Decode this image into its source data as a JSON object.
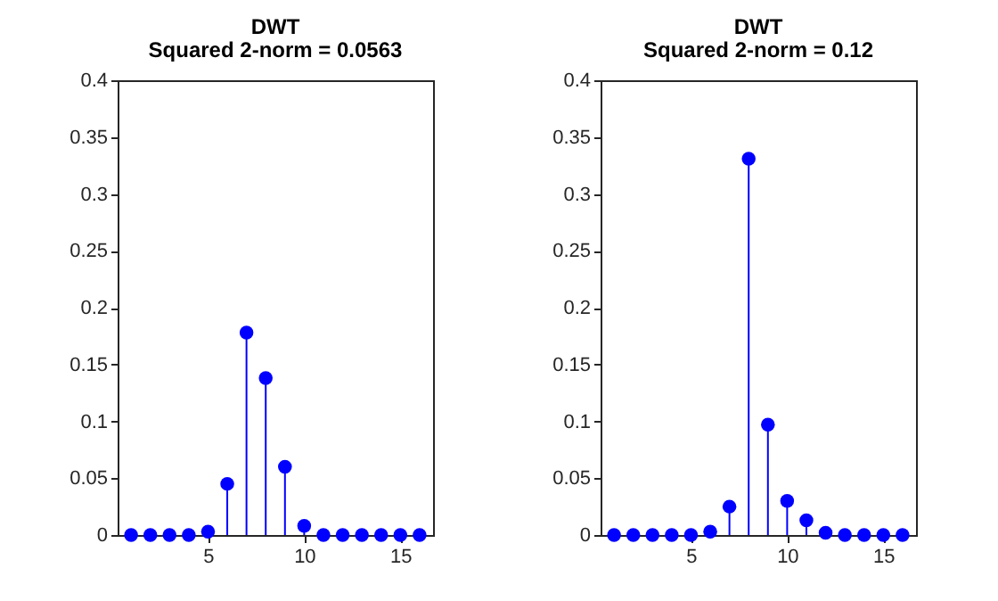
{
  "chart_data": [
    {
      "type": "lollipop",
      "title": "DWT",
      "subtitle": "Squared 2-norm = 0.0563",
      "x": [
        1,
        2,
        3,
        4,
        5,
        6,
        7,
        8,
        9,
        10,
        11,
        12,
        13,
        14,
        15,
        16
      ],
      "series": [
        {
          "color": "#0000ff",
          "values": [
            0,
            0,
            0,
            0,
            0.003,
            0.045,
            0.178,
            0.138,
            0.06,
            0.008,
            0,
            0,
            0,
            0,
            0,
            0
          ]
        }
      ],
      "xlim": [
        0.3,
        16.7
      ],
      "xticks": [
        5,
        10,
        15
      ],
      "ylim": [
        0,
        0.4
      ],
      "yticks": [
        0,
        0.05,
        0.1,
        0.15,
        0.2,
        0.25,
        0.3,
        0.35,
        0.4
      ],
      "marker": "circle",
      "grid": false
    },
    {
      "type": "lollipop",
      "title": "DWT",
      "subtitle": "Squared 2-norm = 0.12",
      "x": [
        1,
        2,
        3,
        4,
        5,
        6,
        7,
        8,
        9,
        10,
        11,
        12,
        13,
        14,
        15,
        16
      ],
      "series": [
        {
          "color": "#0000ff",
          "values": [
            0,
            0,
            0,
            0,
            0,
            0.003,
            0.025,
            0.331,
            0.097,
            0.03,
            0.013,
            0.002,
            0,
            0,
            0,
            0
          ]
        }
      ],
      "xlim": [
        0.3,
        16.7
      ],
      "xticks": [
        5,
        10,
        15
      ],
      "ylim": [
        0,
        0.4
      ],
      "yticks": [
        0,
        0.05,
        0.1,
        0.15,
        0.2,
        0.25,
        0.3,
        0.35,
        0.4
      ],
      "marker": "circle",
      "grid": false
    }
  ]
}
